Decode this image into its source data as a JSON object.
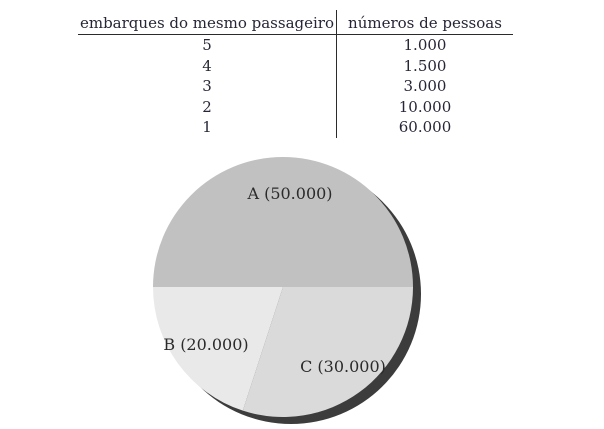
{
  "page": {
    "background": "#ffffff"
  },
  "chart_data": [
    {
      "type": "table",
      "columns": [
        "embarques do mesmo passageiro",
        "números de pessoas"
      ],
      "rows": [
        [
          "5",
          "1.000"
        ],
        [
          "4",
          "1.500"
        ],
        [
          "3",
          "3.000"
        ],
        [
          "2",
          "10.000"
        ],
        [
          "1",
          "60.000"
        ]
      ]
    },
    {
      "type": "pie",
      "slices": [
        {
          "label": "A",
          "value": 50000,
          "display": "A (50.000)",
          "color": "#c1c1c1"
        },
        {
          "label": "B",
          "value": 20000,
          "display": "B (20.000)",
          "color": "#e9e9e9"
        },
        {
          "label": "C",
          "value": 30000,
          "display": "C (30.000)",
          "color": "#dadada"
        }
      ],
      "total": 100000,
      "start_angle_deg": 180,
      "direction": "clockwise",
      "draw_order": [
        0,
        2,
        1
      ],
      "shadow_color": "#3c3c3c",
      "legend_position": "none",
      "labels_inside": true
    }
  ]
}
